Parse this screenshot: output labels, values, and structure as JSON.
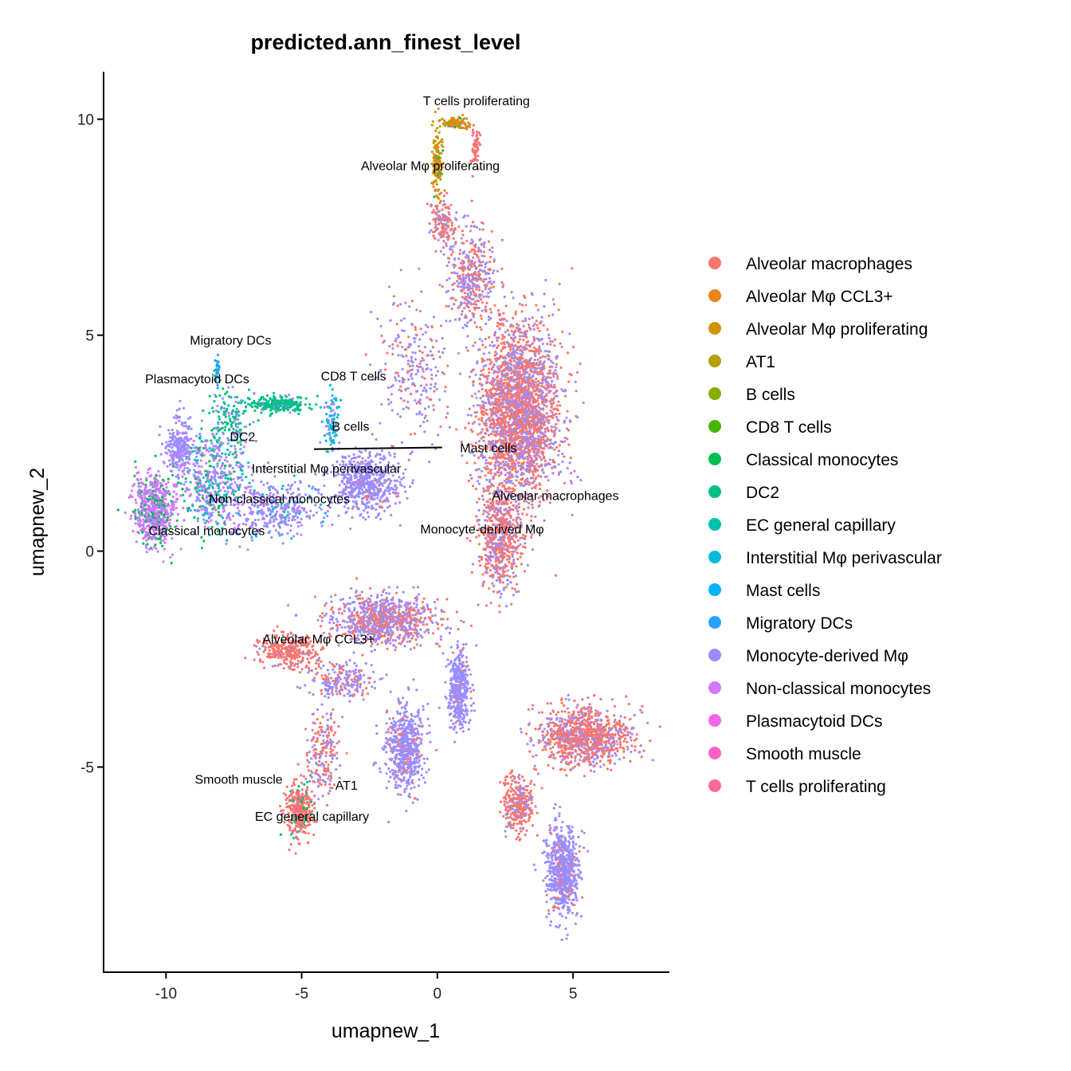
{
  "chart_data": {
    "type": "scatter",
    "title": "predicted.ann_finest_level",
    "xlabel": "umapnew_1",
    "ylabel": "umapnew_2",
    "xlim": [
      -12.3,
      8.55
    ],
    "ylim": [
      -9.75,
      11.1
    ],
    "xticks": [
      -10,
      -5,
      0,
      5
    ],
    "yticks": [
      -5,
      0,
      5,
      10
    ],
    "grid": false,
    "legend_position": "right",
    "legend": [
      {
        "label": "Alveolar macrophages",
        "color": "#F8766D"
      },
      {
        "label": "Alveolar Mφ CCL3+",
        "color": "#E7851E"
      },
      {
        "label": "Alveolar Mφ proliferating",
        "color": "#D09400"
      },
      {
        "label": "AT1",
        "color": "#B2A100"
      },
      {
        "label": "B cells",
        "color": "#89AC00"
      },
      {
        "label": "CD8 T cells",
        "color": "#45B500"
      },
      {
        "label": "Classical monocytes",
        "color": "#00BC51"
      },
      {
        "label": "DC2",
        "color": "#00C087"
      },
      {
        "label": "EC general capillary",
        "color": "#00C0B2"
      },
      {
        "label": "Interstitial Mφ perivascular",
        "color": "#00BCD6"
      },
      {
        "label": "Mast cells",
        "color": "#00B3F2"
      },
      {
        "label": "Migratory DCs",
        "color": "#29A3FF"
      },
      {
        "label": "Monocyte-derived Mφ",
        "color": "#9C8DFF"
      },
      {
        "label": "Non-classical monocytes",
        "color": "#D277FF"
      },
      {
        "label": "Plasmacytoid DCs",
        "color": "#F166E8"
      },
      {
        "label": "Smooth muscle",
        "color": "#FF61C7"
      },
      {
        "label": "T cells proliferating",
        "color": "#FF689E"
      }
    ],
    "cluster_labels": [
      {
        "text": "T cells proliferating",
        "x": 1.44,
        "y": 10.44
      },
      {
        "text": "Alveolar Mφ proliferating",
        "x": -0.26,
        "y": 8.93
      },
      {
        "text": "Migratory DCs",
        "x": -7.62,
        "y": 4.89
      },
      {
        "text": "Plasmacytoid DCs",
        "x": -8.85,
        "y": 4.0
      },
      {
        "text": "CD8 T cells",
        "x": -3.09,
        "y": 4.06
      },
      {
        "text": "B cells",
        "x": -3.2,
        "y": 2.9
      },
      {
        "text": "DC2",
        "x": -7.18,
        "y": 2.66
      },
      {
        "text": "Mast cells",
        "x": 1.88,
        "y": 2.4,
        "segment_to": [
          -4.55,
          2.36
        ]
      },
      {
        "text": "Interstitial Mφ perivascular",
        "x": -4.09,
        "y": 1.92
      },
      {
        "text": "Alveolar macrophages",
        "x": 4.35,
        "y": 1.29
      },
      {
        "text": "Non-classical monocytes",
        "x": -5.82,
        "y": 1.22
      },
      {
        "text": "Classical monocytes",
        "x": -8.5,
        "y": 0.48
      },
      {
        "text": "Monocyte-derived Mφ",
        "x": 1.65,
        "y": 0.52
      },
      {
        "text": "Alveolar Mφ CCL3+",
        "x": -4.38,
        "y": -2.03
      },
      {
        "text": "Smooth muscle",
        "x": -7.32,
        "y": -5.28
      },
      {
        "text": "AT1",
        "x": -3.35,
        "y": -5.41
      },
      {
        "text": "EC general capillary",
        "x": -4.62,
        "y": -6.13
      }
    ],
    "clusters": [
      {
        "cx": 3.0,
        "cy": 3.2,
        "sx": 1.05,
        "sy": 1.5,
        "n": 2600,
        "mix": [
          [
            0,
            0.62
          ],
          [
            12,
            0.38
          ]
        ]
      },
      {
        "cx": 2.3,
        "cy": 0.3,
        "sx": 0.55,
        "sy": 0.9,
        "n": 600,
        "mix": [
          [
            0,
            0.7
          ],
          [
            12,
            0.3
          ]
        ]
      },
      {
        "cx": 1.3,
        "cy": 6.3,
        "sx": 0.6,
        "sy": 0.8,
        "n": 400,
        "mix": [
          [
            0,
            0.5
          ],
          [
            12,
            0.5
          ]
        ]
      },
      {
        "cx": 0.2,
        "cy": 7.6,
        "sx": 0.35,
        "sy": 0.4,
        "n": 150,
        "mix": [
          [
            0,
            0.6
          ],
          [
            12,
            0.4
          ]
        ]
      },
      {
        "cx": 0.0,
        "cy": 9.1,
        "sx": 0.15,
        "sy": 0.55,
        "n": 150,
        "mix": [
          [
            2,
            0.8
          ],
          [
            0,
            0.1
          ],
          [
            6,
            0.1
          ]
        ]
      },
      {
        "cx": 0.7,
        "cy": 9.9,
        "sx": 0.4,
        "sy": 0.08,
        "n": 120,
        "mix": [
          [
            2,
            0.7
          ],
          [
            0,
            0.2
          ],
          [
            6,
            0.1
          ]
        ]
      },
      {
        "cx": 1.4,
        "cy": 9.4,
        "sx": 0.12,
        "sy": 0.35,
        "n": 60,
        "mix": [
          [
            0,
            0.8
          ],
          [
            16,
            0.2
          ]
        ]
      },
      {
        "cx": -0.8,
        "cy": 4.2,
        "sx": 1.0,
        "sy": 1.2,
        "n": 250,
        "mix": [
          [
            12,
            0.7
          ],
          [
            0,
            0.3
          ]
        ]
      },
      {
        "cx": -2.6,
        "cy": 1.6,
        "sx": 0.9,
        "sy": 0.5,
        "n": 600,
        "mix": [
          [
            12,
            0.95
          ],
          [
            0,
            0.05
          ]
        ]
      },
      {
        "cx": -10.4,
        "cy": 1.0,
        "sx": 0.55,
        "sy": 0.6,
        "n": 600,
        "mix": [
          [
            13,
            0.65
          ],
          [
            6,
            0.25
          ],
          [
            12,
            0.1
          ]
        ]
      },
      {
        "cx": -9.5,
        "cy": 2.4,
        "sx": 0.4,
        "sy": 0.5,
        "n": 250,
        "mix": [
          [
            12,
            0.8
          ],
          [
            13,
            0.2
          ]
        ]
      },
      {
        "cx": -8.2,
        "cy": 1.5,
        "sx": 0.9,
        "sy": 0.8,
        "n": 500,
        "mix": [
          [
            12,
            0.4
          ],
          [
            13,
            0.25
          ],
          [
            9,
            0.2
          ],
          [
            6,
            0.15
          ]
        ]
      },
      {
        "cx": -6.0,
        "cy": 1.0,
        "sx": 1.2,
        "sy": 0.5,
        "n": 350,
        "mix": [
          [
            12,
            0.75
          ],
          [
            9,
            0.15
          ],
          [
            13,
            0.1
          ]
        ]
      },
      {
        "cx": -5.9,
        "cy": 3.4,
        "sx": 0.8,
        "sy": 0.14,
        "n": 250,
        "mix": [
          [
            7,
            0.9
          ],
          [
            12,
            0.1
          ]
        ]
      },
      {
        "cx": -7.7,
        "cy": 3.0,
        "sx": 0.6,
        "sy": 0.5,
        "n": 150,
        "mix": [
          [
            7,
            0.7
          ],
          [
            12,
            0.3
          ]
        ]
      },
      {
        "cx": -8.1,
        "cy": 4.2,
        "sx": 0.08,
        "sy": 0.25,
        "n": 30,
        "mix": [
          [
            11,
            0.8
          ],
          [
            7,
            0.2
          ]
        ]
      },
      {
        "cx": -3.9,
        "cy": 3.0,
        "sx": 0.2,
        "sy": 0.5,
        "n": 100,
        "mix": [
          [
            9,
            0.6
          ],
          [
            12,
            0.4
          ]
        ]
      },
      {
        "cx": -2.0,
        "cy": -1.6,
        "sx": 1.4,
        "sy": 0.4,
        "n": 900,
        "mix": [
          [
            12,
            0.6
          ],
          [
            0,
            0.4
          ]
        ]
      },
      {
        "cx": -5.5,
        "cy": -2.3,
        "sx": 0.8,
        "sy": 0.3,
        "n": 300,
        "mix": [
          [
            0,
            0.9
          ],
          [
            12,
            0.1
          ]
        ]
      },
      {
        "cx": -3.5,
        "cy": -3.0,
        "sx": 0.8,
        "sy": 0.3,
        "n": 200,
        "mix": [
          [
            12,
            0.7
          ],
          [
            0,
            0.3
          ]
        ]
      },
      {
        "cx": -1.2,
        "cy": -4.6,
        "sx": 0.5,
        "sy": 0.7,
        "n": 600,
        "mix": [
          [
            12,
            0.9
          ],
          [
            0,
            0.1
          ]
        ]
      },
      {
        "cx": 0.8,
        "cy": -3.2,
        "sx": 0.3,
        "sy": 0.6,
        "n": 400,
        "mix": [
          [
            12,
            0.95
          ],
          [
            0,
            0.05
          ]
        ]
      },
      {
        "cx": -4.2,
        "cy": -4.6,
        "sx": 0.4,
        "sy": 0.8,
        "n": 200,
        "mix": [
          [
            0,
            0.6
          ],
          [
            12,
            0.4
          ]
        ]
      },
      {
        "cx": -5.1,
        "cy": -6.0,
        "sx": 0.35,
        "sy": 0.45,
        "n": 350,
        "mix": [
          [
            0,
            0.8
          ],
          [
            6,
            0.08
          ],
          [
            8,
            0.06
          ],
          [
            15,
            0.06
          ]
        ]
      },
      {
        "cx": 5.4,
        "cy": -4.3,
        "sx": 1.2,
        "sy": 0.45,
        "n": 1000,
        "mix": [
          [
            0,
            0.7
          ],
          [
            12,
            0.3
          ]
        ]
      },
      {
        "cx": 4.6,
        "cy": -7.4,
        "sx": 0.4,
        "sy": 0.75,
        "n": 700,
        "mix": [
          [
            12,
            0.9
          ],
          [
            0,
            0.1
          ]
        ]
      },
      {
        "cx": 3.0,
        "cy": -5.9,
        "sx": 0.4,
        "sy": 0.5,
        "n": 300,
        "mix": [
          [
            0,
            0.7
          ],
          [
            12,
            0.3
          ]
        ]
      }
    ]
  }
}
